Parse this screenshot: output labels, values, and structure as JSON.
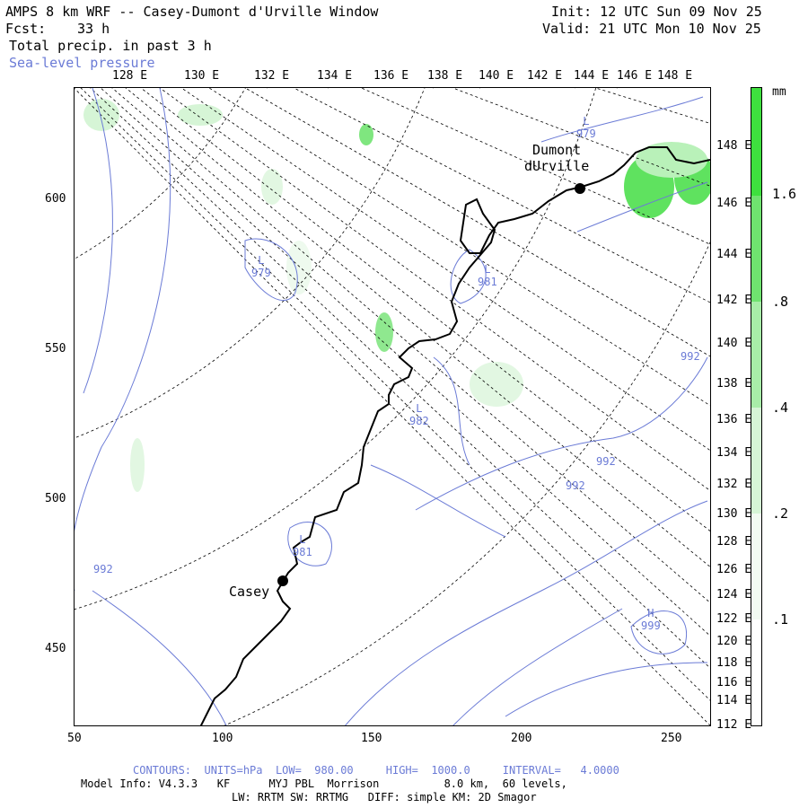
{
  "header": {
    "title": "AMPS 8 km WRF -- Casey-Dumont d'Urville Window",
    "forecast_label": "Fcst:",
    "forecast_hours": "33 h",
    "field": "Total precip. in past 3 h",
    "overlay": "Sea-level pressure",
    "init": "Init: 12 UTC Sun 09 Nov 25",
    "valid": "Valid: 21 UTC Mon 10 Nov 25"
  },
  "map": {
    "top_lon_labels": [
      "128 E",
      "130 E",
      "132 E",
      "134 E",
      "136 E",
      "138 E",
      "140 E",
      "142 E",
      "144 E",
      "146 E",
      "148 E"
    ],
    "right_lon_labels": [
      "148 E",
      "146 E",
      "144 E",
      "142 E",
      "140 E",
      "138 E",
      "136 E",
      "134 E",
      "132 E",
      "130 E",
      "128 E",
      "126 E",
      "124 E",
      "122 E",
      "120 E",
      "118 E",
      "116 E",
      "114 E",
      "112 E"
    ],
    "x_ticks": [
      "50",
      "100",
      "150",
      "200",
      "250"
    ],
    "y_ticks": [
      "600",
      "550",
      "500",
      "450"
    ],
    "stations": [
      {
        "name": "Dumont\ndUrville"
      },
      {
        "name": "Casey"
      }
    ],
    "pressure_labels": [
      {
        "letter": "L",
        "value": "979"
      },
      {
        "letter": "L",
        "value": "979"
      },
      {
        "letter": "L",
        "value": "981"
      },
      {
        "letter": "L",
        "value": "982"
      },
      {
        "letter": "L",
        "value": "981"
      },
      {
        "letter": "",
        "value": "992"
      },
      {
        "letter": "",
        "value": "992"
      },
      {
        "letter": "",
        "value": "992"
      },
      {
        "letter": "",
        "value": "992"
      },
      {
        "letter": "H",
        "value": "999"
      }
    ],
    "colors": {
      "frame": "#000000",
      "contour": "#6b7bd6",
      "coast": "#000000",
      "grid": "#000000"
    }
  },
  "colorbar": {
    "unit": "mm",
    "labels": [
      "1.6",
      ".8",
      ".4",
      ".2",
      ".1"
    ],
    "colors": [
      "#ffffff",
      "#f2fbf2",
      "#d6f5d6",
      "#a8eda8",
      "#6fe36f",
      "#3ee03e"
    ]
  },
  "footer": {
    "contours": "CONTOURS:  UNITS=hPa  LOW=  980.00     HIGH=  1000.0     INTERVAL=   4.0000",
    "model_info": "Model Info: V4.3.3   KF      MYJ PBL  Morrison          8.0 km,  60 levels,",
    "physics": "LW: RRTM SW: RRTMG   DIFF: simple KM: 2D Smagor"
  }
}
